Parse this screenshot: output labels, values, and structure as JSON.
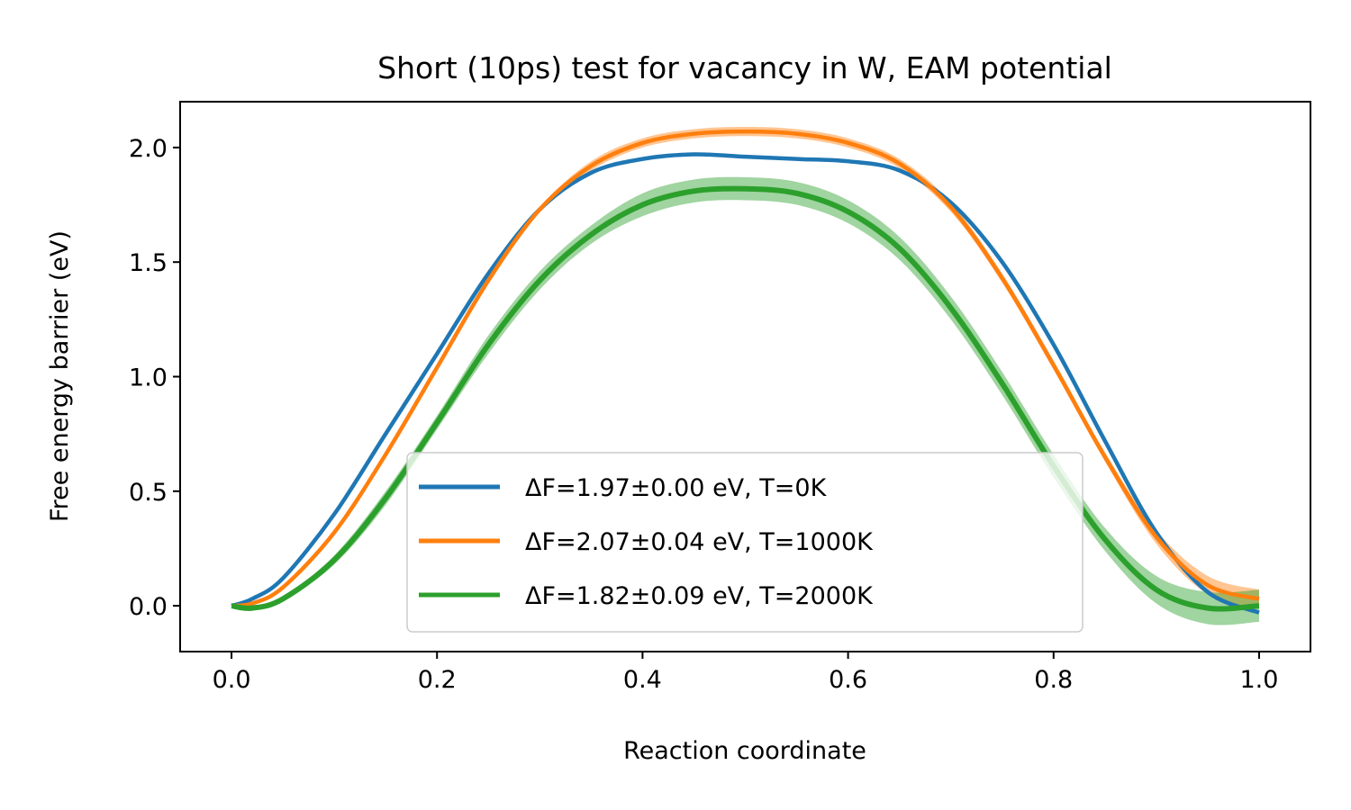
{
  "chart_data": {
    "type": "line",
    "title": "Short (10ps) test for vacancy in W, EAM potential",
    "xlabel": "Reaction coordinate",
    "ylabel": "Free energy barrier (eV)",
    "xlim": [
      -0.05,
      1.05
    ],
    "ylim": [
      -0.2,
      2.2
    ],
    "xticks": [
      0.0,
      0.2,
      0.4,
      0.6,
      0.8,
      1.0
    ],
    "xtick_labels": [
      "0.0",
      "0.2",
      "0.4",
      "0.6",
      "0.8",
      "1.0"
    ],
    "yticks": [
      0.0,
      0.5,
      1.0,
      1.5,
      2.0
    ],
    "ytick_labels": [
      "0.0",
      "0.5",
      "1.0",
      "1.5",
      "2.0"
    ],
    "grid": false,
    "legend_position": "lower-center",
    "series": [
      {
        "name": "ΔF=1.97±0.00 eV, T=0K",
        "color": "#1f77b4",
        "x": [
          0.0,
          0.02,
          0.05,
          0.1,
          0.15,
          0.2,
          0.25,
          0.3,
          0.35,
          0.4,
          0.45,
          0.5,
          0.55,
          0.6,
          0.65,
          0.7,
          0.75,
          0.8,
          0.85,
          0.9,
          0.95,
          1.0
        ],
        "y": [
          0.0,
          0.03,
          0.12,
          0.4,
          0.75,
          1.1,
          1.45,
          1.73,
          1.89,
          1.95,
          1.97,
          1.96,
          1.95,
          1.94,
          1.9,
          1.76,
          1.5,
          1.14,
          0.72,
          0.32,
          0.06,
          -0.03
        ],
        "err": [
          0,
          0,
          0,
          0,
          0,
          0,
          0,
          0,
          0,
          0,
          0,
          0,
          0,
          0,
          0,
          0,
          0,
          0,
          0,
          0,
          0,
          0
        ]
      },
      {
        "name": "ΔF=2.07±0.04 eV, T=1000K",
        "color": "#ff7f0e",
        "x": [
          0.0,
          0.02,
          0.05,
          0.1,
          0.15,
          0.2,
          0.25,
          0.3,
          0.35,
          0.4,
          0.45,
          0.5,
          0.55,
          0.6,
          0.65,
          0.7,
          0.75,
          0.8,
          0.85,
          0.9,
          0.95,
          1.0
        ],
        "y": [
          0.0,
          0.01,
          0.08,
          0.32,
          0.66,
          1.04,
          1.42,
          1.73,
          1.92,
          2.02,
          2.06,
          2.07,
          2.06,
          2.02,
          1.93,
          1.74,
          1.43,
          1.05,
          0.65,
          0.3,
          0.09,
          0.03
        ],
        "err": [
          0.0,
          0.0,
          0.0,
          0.0,
          0.0,
          0.0,
          0.01,
          0.01,
          0.02,
          0.02,
          0.02,
          0.02,
          0.02,
          0.02,
          0.02,
          0.02,
          0.02,
          0.02,
          0.02,
          0.03,
          0.04,
          0.04
        ]
      },
      {
        "name": "ΔF=1.82±0.09 eV, T=2000K",
        "color": "#2ca02c",
        "x": [
          0.0,
          0.02,
          0.05,
          0.1,
          0.15,
          0.2,
          0.25,
          0.3,
          0.35,
          0.4,
          0.45,
          0.5,
          0.55,
          0.6,
          0.65,
          0.7,
          0.75,
          0.8,
          0.85,
          0.9,
          0.95,
          1.0
        ],
        "y": [
          0.0,
          -0.01,
          0.03,
          0.2,
          0.47,
          0.8,
          1.14,
          1.42,
          1.62,
          1.75,
          1.81,
          1.82,
          1.8,
          1.72,
          1.56,
          1.3,
          0.97,
          0.61,
          0.29,
          0.07,
          -0.01,
          0.0
        ],
        "err": [
          0.0,
          0.01,
          0.01,
          0.02,
          0.03,
          0.03,
          0.04,
          0.04,
          0.04,
          0.05,
          0.05,
          0.05,
          0.05,
          0.05,
          0.05,
          0.05,
          0.05,
          0.05,
          0.05,
          0.06,
          0.07,
          0.07
        ]
      }
    ]
  }
}
